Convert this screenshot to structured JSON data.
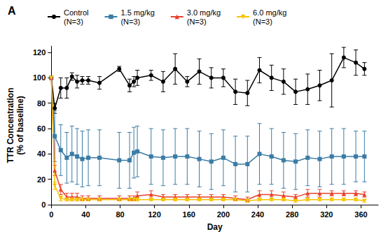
{
  "chart_data": {
    "type": "line",
    "title": "A",
    "x_label": "Day",
    "y_label": "TTR Concentration (% of baseline)",
    "xlim": [
      0,
      380
    ],
    "xticks": [
      0,
      40,
      80,
      120,
      160,
      200,
      240,
      280,
      320,
      360
    ],
    "ylim": [
      0,
      125
    ],
    "yticks": [
      0,
      20,
      40,
      60,
      80,
      100,
      120
    ],
    "grid": false,
    "legend": "top",
    "x": [
      0,
      4,
      11,
      18,
      24,
      30,
      36,
      43,
      56,
      79,
      91,
      96,
      100,
      116,
      130,
      144,
      158,
      172,
      186,
      200,
      214,
      228,
      242,
      256,
      270,
      284,
      298,
      312,
      326,
      340,
      354,
      364
    ],
    "series": [
      {
        "name": "Control (N=3)",
        "color": "#000000",
        "marker": "circle",
        "values": [
          100,
          76,
          92,
          92,
          101,
          97,
          98,
          98,
          96,
          107,
          94,
          97,
          100,
          102,
          97,
          107,
          97,
          105,
          100,
          100,
          89,
          88,
          106,
          100,
          97,
          89,
          91,
          94,
          98,
          116,
          112,
          107
        ],
        "errors": [
          0,
          4,
          8,
          8,
          3,
          5,
          3,
          3,
          5,
          2,
          5,
          4,
          6,
          4,
          8,
          12,
          4,
          10,
          8,
          7,
          10,
          10,
          10,
          10,
          10,
          10,
          12,
          12,
          21,
          8,
          10,
          5
        ]
      },
      {
        "name": "1.5 mg/kg (N=3)",
        "color": "#3a7ca5",
        "marker": "square",
        "values": [
          100,
          54,
          43,
          37,
          40,
          38,
          36,
          37,
          37,
          35,
          35,
          41,
          42,
          38,
          37,
          38,
          38,
          36,
          34,
          37,
          32,
          32,
          40,
          38,
          35,
          34,
          37,
          36,
          38,
          38,
          38,
          38
        ],
        "errors": [
          0,
          20,
          20,
          20,
          22,
          22,
          22,
          22,
          22,
          22,
          22,
          20,
          20,
          22,
          22,
          22,
          22,
          22,
          22,
          22,
          22,
          22,
          24,
          22,
          22,
          22,
          22,
          22,
          22,
          22,
          20,
          20
        ]
      },
      {
        "name": "3.0 mg/kg (N=3)",
        "color": "#e8412c",
        "marker": "triangle",
        "values": [
          100,
          27,
          12,
          6,
          6,
          6,
          5,
          5,
          5,
          5,
          5,
          5,
          7,
          8,
          6,
          6,
          6,
          6,
          6,
          6,
          5,
          4,
          8,
          8,
          7,
          6,
          9,
          9,
          9,
          9,
          9,
          8
        ],
        "errors": [
          0,
          4,
          4,
          3,
          3,
          3,
          2,
          2,
          2,
          2,
          2,
          2,
          3,
          3,
          2,
          2,
          2,
          2,
          2,
          2,
          2,
          2,
          3,
          3,
          3,
          2,
          3,
          3,
          2,
          2,
          2,
          2
        ]
      },
      {
        "name": "6.0 mg/kg (N=3)",
        "color": "#f5c400",
        "marker": "triangle_down",
        "values": [
          100,
          15,
          5,
          4,
          4,
          4,
          4,
          4,
          4,
          4,
          4,
          4,
          4,
          4,
          4,
          4,
          4,
          4,
          4,
          4,
          4,
          3,
          4,
          4,
          4,
          3,
          4,
          4,
          4,
          4,
          4,
          3
        ],
        "errors": [
          0,
          3,
          2,
          1,
          1,
          1,
          1,
          1,
          1,
          1,
          1,
          1,
          1,
          1,
          1,
          1,
          1,
          1,
          1,
          1,
          1,
          1,
          1,
          1,
          1,
          1,
          1,
          1,
          1,
          1,
          1,
          1
        ]
      }
    ]
  }
}
